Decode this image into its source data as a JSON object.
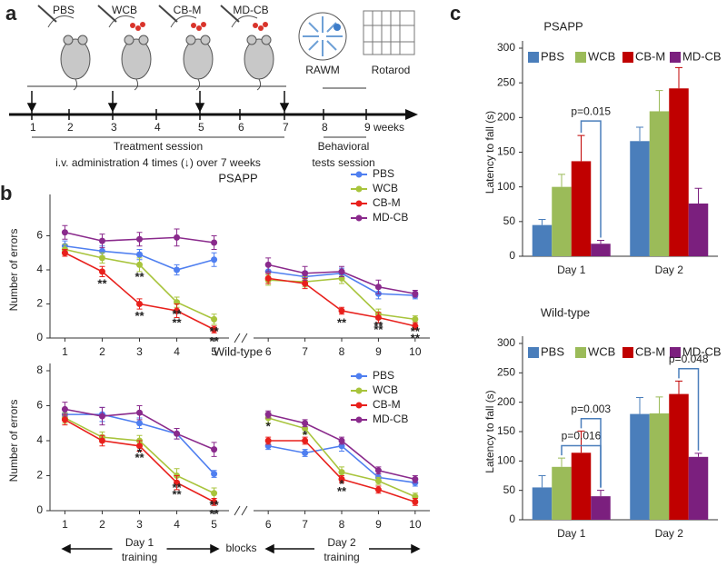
{
  "panel_a": {
    "label": "a",
    "groups": [
      "PBS",
      "WCB",
      "CB-M",
      "MD-CB"
    ],
    "tests": [
      "RAWM",
      "Rotarod"
    ],
    "weeks": [
      "1",
      "2",
      "3",
      "4",
      "5",
      "6",
      "7",
      "8",
      "9 weeks"
    ],
    "treatment": "Treatment session",
    "administration": "i.v. administration 4 times (↓) over 7 weeks",
    "behavioral": [
      "Behavioral",
      "tests session"
    ]
  },
  "chart_data": [
    {
      "type": "line",
      "panel": "b",
      "title": "PSAPP",
      "ylabel": "Number of errors",
      "x": [
        1,
        2,
        3,
        4,
        5,
        6,
        7,
        8,
        9,
        10
      ],
      "xlim": [
        0.6,
        10.4
      ],
      "axis_break": [
        5,
        6
      ],
      "ylim": [
        0,
        8
      ],
      "yticks": [
        0,
        2,
        4,
        6
      ],
      "legend": "upper right",
      "series": [
        {
          "name": "PBS",
          "color": "#4f7ff0",
          "values": [
            5.4,
            5.1,
            4.9,
            4.0,
            4.6,
            3.9,
            3.6,
            3.8,
            2.6,
            2.5
          ],
          "errors": [
            0.3,
            0.3,
            0.3,
            0.3,
            0.4,
            0.4,
            0.3,
            0.3,
            0.3,
            0.2
          ]
        },
        {
          "name": "WCB",
          "color": "#a8c43c",
          "values": [
            5.2,
            4.7,
            4.3,
            2.1,
            1.1,
            3.4,
            3.3,
            3.5,
            1.4,
            1.1
          ],
          "errors": [
            0.3,
            0.3,
            0.4,
            0.3,
            0.3,
            0.3,
            0.3,
            0.3,
            0.3,
            0.2
          ]
        },
        {
          "name": "CB-M",
          "color": "#e8201c",
          "values": [
            5.0,
            3.9,
            2.0,
            1.6,
            0.5,
            3.5,
            3.2,
            1.6,
            1.2,
            0.7
          ],
          "errors": [
            0.2,
            0.3,
            0.3,
            0.4,
            0.2,
            0.3,
            0.3,
            0.2,
            0.3,
            0.2
          ]
        },
        {
          "name": "MD-CB",
          "color": "#8a2a8c",
          "values": [
            6.2,
            5.7,
            5.8,
            5.9,
            5.6,
            4.3,
            3.8,
            3.9,
            3.0,
            2.6
          ],
          "errors": [
            0.4,
            0.4,
            0.4,
            0.5,
            0.4,
            0.4,
            0.4,
            0.3,
            0.4,
            0.2
          ]
        }
      ],
      "annotations": [
        {
          "text": "**",
          "x": 2,
          "series": "CB-M"
        },
        {
          "text": "**",
          "x": 3,
          "series": "WCB"
        },
        {
          "text": "**",
          "x": 3,
          "series": "CB-M"
        },
        {
          "text": "**",
          "x": 4,
          "series": "WCB"
        },
        {
          "text": "**",
          "x": 4,
          "series": "CB-M"
        },
        {
          "text": "**",
          "x": 5,
          "series": "WCB"
        },
        {
          "text": "**",
          "x": 5,
          "series": "CB-M"
        },
        {
          "text": "**",
          "x": 8,
          "series": "CB-M"
        },
        {
          "text": "**",
          "x": 9,
          "series": "WCB"
        },
        {
          "text": "**",
          "x": 9,
          "series": "CB-M"
        },
        {
          "text": "**",
          "x": 10,
          "series": "WCB"
        },
        {
          "text": "**",
          "x": 10,
          "series": "CB-M"
        }
      ]
    },
    {
      "type": "line",
      "title": "Wild-type",
      "ylabel": "Number of errors",
      "xlabel": "blocks",
      "group_labels": [
        [
          "Day 1",
          "training"
        ],
        [
          "Day 2",
          "training"
        ]
      ],
      "x": [
        1,
        2,
        3,
        4,
        5,
        6,
        7,
        8,
        9,
        10
      ],
      "xlim": [
        0.6,
        10.4
      ],
      "axis_break": [
        5,
        6
      ],
      "ylim": [
        0,
        8
      ],
      "yticks": [
        0,
        2,
        4,
        6,
        8
      ],
      "legend": "upper right",
      "series": [
        {
          "name": "PBS",
          "color": "#4f7ff0",
          "values": [
            5.5,
            5.5,
            5.0,
            4.4,
            2.1,
            3.7,
            3.3,
            3.7,
            1.9,
            1.6
          ],
          "errors": [
            0.3,
            0.4,
            0.3,
            0.3,
            0.2,
            0.2,
            0.2,
            0.3,
            0.2,
            0.2
          ]
        },
        {
          "name": "WCB",
          "color": "#a8c43c",
          "values": [
            5.3,
            4.2,
            4.0,
            2.0,
            1.0,
            5.3,
            4.7,
            2.2,
            1.7,
            0.8
          ],
          "errors": [
            0.3,
            0.3,
            0.3,
            0.4,
            0.3,
            0.3,
            0.3,
            0.3,
            0.2,
            0.2
          ]
        },
        {
          "name": "CB-M",
          "color": "#e8201c",
          "values": [
            5.2,
            4.0,
            3.7,
            1.6,
            0.5,
            4.0,
            4.0,
            1.8,
            1.2,
            0.5
          ],
          "errors": [
            0.3,
            0.3,
            0.3,
            0.4,
            0.2,
            0.2,
            0.2,
            0.2,
            0.2,
            0.2
          ]
        },
        {
          "name": "MD-CB",
          "color": "#8a2a8c",
          "values": [
            5.8,
            5.4,
            5.6,
            4.4,
            3.5,
            5.5,
            5.0,
            4.0,
            2.3,
            1.8
          ],
          "errors": [
            0.4,
            0.5,
            0.4,
            0.3,
            0.4,
            0.2,
            0.2,
            0.2,
            0.2,
            0.2
          ]
        }
      ],
      "annotations": [
        {
          "text": "*",
          "x": 3,
          "series": "WCB"
        },
        {
          "text": "**",
          "x": 3,
          "series": "CB-M"
        },
        {
          "text": "**",
          "x": 4,
          "series": "WCB"
        },
        {
          "text": "**",
          "x": 4,
          "series": "CB-M"
        },
        {
          "text": "**",
          "x": 5,
          "series": "WCB"
        },
        {
          "text": "**",
          "x": 5,
          "series": "CB-M"
        },
        {
          "text": "*",
          "x": 6,
          "series": "MD-CB"
        },
        {
          "text": "*",
          "x": 7,
          "series": "MD-CB"
        },
        {
          "text": "*",
          "x": 8,
          "series": "WCB"
        },
        {
          "text": "**",
          "x": 8,
          "series": "CB-M"
        }
      ]
    },
    {
      "type": "bar",
      "panel": "c",
      "title": "PSAPP",
      "ylabel": "Latency to fall (s)",
      "categories": [
        "Day 1",
        "Day 2"
      ],
      "ylim": [
        0,
        300
      ],
      "yticks": [
        0,
        50,
        100,
        150,
        200,
        250,
        300
      ],
      "legend": "top",
      "series": [
        {
          "name": "PBS",
          "color": "#4a7ebb",
          "values": [
            45,
            166
          ],
          "errors": [
            8,
            20
          ]
        },
        {
          "name": "WCB",
          "color": "#9bbb59",
          "values": [
            100,
            209
          ],
          "errors": [
            18,
            30
          ]
        },
        {
          "name": "CB-M",
          "color": "#c00000",
          "values": [
            137,
            242
          ],
          "errors": [
            37,
            30
          ]
        },
        {
          "name": "MD-CB",
          "color": "#7b1f7e",
          "values": [
            18,
            76
          ],
          "errors": [
            5,
            22
          ]
        }
      ],
      "comparisons": [
        {
          "label": "p=0.015",
          "category": "Day 1",
          "between": [
            "CB-M",
            "MD-CB"
          ]
        }
      ]
    },
    {
      "type": "bar",
      "title": "Wild-type",
      "ylabel": "Latency to fall (s)",
      "categories": [
        "Day 1",
        "Day 2"
      ],
      "ylim": [
        0,
        300
      ],
      "yticks": [
        0,
        50,
        100,
        150,
        200,
        250,
        300
      ],
      "legend": "top",
      "series": [
        {
          "name": "PBS",
          "color": "#4a7ebb",
          "values": [
            55,
            180
          ],
          "errors": [
            20,
            28
          ]
        },
        {
          "name": "WCB",
          "color": "#9bbb59",
          "values": [
            90,
            181
          ],
          "errors": [
            15,
            28
          ]
        },
        {
          "name": "CB-M",
          "color": "#c00000",
          "values": [
            114,
            214
          ],
          "errors": [
            37,
            22
          ]
        },
        {
          "name": "MD-CB",
          "color": "#7b1f7e",
          "values": [
            40,
            107
          ],
          "errors": [
            10,
            6
          ]
        }
      ],
      "comparisons": [
        {
          "label": "p=0.016",
          "category": "Day 1",
          "between": [
            "WCB",
            "MD-CB"
          ]
        },
        {
          "label": "p=0.003",
          "category": "Day 1",
          "between": [
            "CB-M",
            "MD-CB"
          ]
        },
        {
          "label": "p=0.048",
          "category": "Day 2",
          "between": [
            "CB-M",
            "MD-CB"
          ]
        }
      ]
    }
  ]
}
